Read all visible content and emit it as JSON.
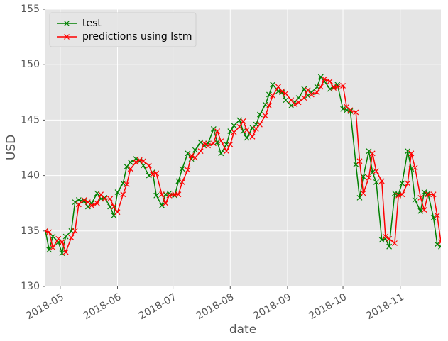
{
  "chart_data": {
    "type": "line",
    "xlabel": "date",
    "ylabel": "USD",
    "x": [
      "2018-04-23",
      "2018-04-25",
      "2018-04-27",
      "2018-04-30",
      "2018-05-02",
      "2018-05-04",
      "2018-05-07",
      "2018-05-09",
      "2018-05-11",
      "2018-05-14",
      "2018-05-16",
      "2018-05-18",
      "2018-05-21",
      "2018-05-23",
      "2018-05-25",
      "2018-05-28",
      "2018-05-30",
      "2018-06-01",
      "2018-06-04",
      "2018-06-06",
      "2018-06-08",
      "2018-06-11",
      "2018-06-13",
      "2018-06-15",
      "2018-06-18",
      "2018-06-20",
      "2018-06-22",
      "2018-06-25",
      "2018-06-27",
      "2018-06-29",
      "2018-07-02",
      "2018-07-04",
      "2018-07-06",
      "2018-07-09",
      "2018-07-11",
      "2018-07-13",
      "2018-07-16",
      "2018-07-18",
      "2018-07-20",
      "2018-07-23",
      "2018-07-25",
      "2018-07-27",
      "2018-07-30",
      "2018-08-01",
      "2018-08-03",
      "2018-08-06",
      "2018-08-08",
      "2018-08-10",
      "2018-08-13",
      "2018-08-15",
      "2018-08-17",
      "2018-08-20",
      "2018-08-22",
      "2018-08-24",
      "2018-08-27",
      "2018-08-29",
      "2018-08-31",
      "2018-09-03",
      "2018-09-05",
      "2018-09-07",
      "2018-09-10",
      "2018-09-12",
      "2018-09-14",
      "2018-09-17",
      "2018-09-19",
      "2018-09-21",
      "2018-09-24",
      "2018-09-26",
      "2018-09-28",
      "2018-10-01",
      "2018-10-03",
      "2018-10-05",
      "2018-10-08",
      "2018-10-10",
      "2018-10-12",
      "2018-10-15",
      "2018-10-17",
      "2018-10-19",
      "2018-10-22",
      "2018-10-24",
      "2018-10-26",
      "2018-10-29",
      "2018-10-31",
      "2018-11-02",
      "2018-11-05",
      "2018-11-07",
      "2018-11-09",
      "2018-11-12",
      "2018-11-14",
      "2018-11-16",
      "2018-11-19",
      "2018-11-21",
      "2018-11-23"
    ],
    "series": [
      {
        "name": "test",
        "color": "#008000",
        "values": [
          135.0,
          133.3,
          134.5,
          134.0,
          133.0,
          134.5,
          135.0,
          137.6,
          137.8,
          137.7,
          137.2,
          137.5,
          138.4,
          137.9,
          138.0,
          137.2,
          136.4,
          138.5,
          139.3,
          140.8,
          141.2,
          141.5,
          141.3,
          140.9,
          140.0,
          140.3,
          138.2,
          137.3,
          138.3,
          138.4,
          138.2,
          139.5,
          140.6,
          142.0,
          141.5,
          142.3,
          143.0,
          142.7,
          142.9,
          144.2,
          143.0,
          142.0,
          142.8,
          144.0,
          144.5,
          145.0,
          144.0,
          143.4,
          144.3,
          144.6,
          145.5,
          146.4,
          147.3,
          148.2,
          147.6,
          147.5,
          146.8,
          146.3,
          146.6,
          147.0,
          147.8,
          147.2,
          147.5,
          148.0,
          148.9,
          148.5,
          147.8,
          148.0,
          148.2,
          146.0,
          145.9,
          145.8,
          141.0,
          138.0,
          139.9,
          142.2,
          140.3,
          139.4,
          134.2,
          134.3,
          133.6,
          138.4,
          138.3,
          139.3,
          142.2,
          140.6,
          137.8,
          136.8,
          138.5,
          138.4,
          136.2,
          133.8,
          133.6
        ]
      },
      {
        "name": "predictions using lstm",
        "color": "#ff0000",
        "values": [
          135.0,
          134.9,
          133.5,
          134.3,
          134.0,
          133.1,
          134.4,
          135.0,
          137.4,
          137.8,
          137.6,
          137.3,
          137.5,
          138.3,
          137.9,
          137.9,
          137.2,
          136.7,
          138.3,
          139.2,
          140.6,
          141.2,
          141.4,
          141.3,
          140.9,
          140.1,
          140.2,
          138.3,
          137.5,
          138.2,
          138.3,
          138.3,
          139.4,
          140.5,
          141.8,
          141.6,
          142.2,
          142.9,
          142.7,
          142.9,
          144.0,
          143.1,
          142.2,
          142.8,
          143.9,
          144.4,
          144.9,
          144.1,
          143.5,
          144.2,
          144.6,
          145.4,
          146.3,
          147.2,
          148.0,
          147.6,
          147.4,
          146.8,
          146.4,
          146.6,
          147.0,
          147.7,
          147.3,
          147.5,
          148.0,
          148.7,
          148.5,
          147.9,
          148.0,
          148.1,
          146.2,
          145.9,
          145.7,
          141.3,
          138.4,
          139.8,
          142.0,
          140.4,
          139.5,
          134.5,
          134.3,
          133.9,
          138.2,
          138.3,
          139.3,
          142.0,
          140.7,
          138.0,
          136.9,
          138.3,
          138.3,
          136.4,
          134.0
        ]
      }
    ],
    "xlim": [
      "2018-04-23",
      "2018-11-23"
    ],
    "xticks": [
      {
        "value": "2018-05-01",
        "label": "2018-05"
      },
      {
        "value": "2018-06-01",
        "label": "2018-06"
      },
      {
        "value": "2018-07-01",
        "label": "2018-07"
      },
      {
        "value": "2018-08-01",
        "label": "2018-08"
      },
      {
        "value": "2018-09-01",
        "label": "2018-09"
      },
      {
        "value": "2018-10-01",
        "label": "2018-10"
      },
      {
        "value": "2018-11-01",
        "label": "2018-11"
      }
    ],
    "ylim": [
      130,
      155
    ],
    "yticks": [
      130,
      135,
      140,
      145,
      150,
      155
    ],
    "grid": true,
    "legend": "upper left",
    "marker": "x"
  }
}
